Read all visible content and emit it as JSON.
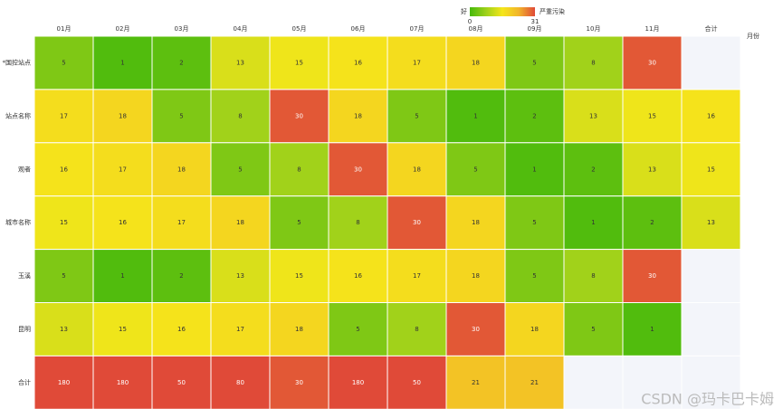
{
  "chart_data": {
    "type": "heatmap",
    "x_axis_name": "月份",
    "categories": [
      "01月",
      "02月",
      "03月",
      "04月",
      "05月",
      "06月",
      "07月",
      "08月",
      "09月",
      "10月",
      "11月",
      "合计"
    ],
    "y_categories": [
      "*国控站点",
      "站点名称",
      "观者",
      "城市名称",
      "玉溪",
      "昆明",
      "合计"
    ],
    "values": [
      [
        5,
        1,
        2,
        13,
        15,
        16,
        17,
        18,
        5,
        8,
        30,
        null
      ],
      [
        17,
        18,
        5,
        8,
        30,
        18,
        5,
        1,
        2,
        13,
        15,
        16
      ],
      [
        16,
        17,
        18,
        5,
        8,
        30,
        18,
        5,
        1,
        2,
        13,
        15
      ],
      [
        15,
        16,
        17,
        18,
        5,
        8,
        30,
        18,
        5,
        1,
        2,
        13
      ],
      [
        5,
        1,
        2,
        13,
        15,
        16,
        17,
        18,
        5,
        8,
        30,
        null
      ],
      [
        13,
        15,
        16,
        17,
        18,
        5,
        8,
        30,
        18,
        5,
        1,
        null
      ],
      [
        180,
        180,
        50,
        80,
        30,
        180,
        50,
        21,
        21,
        null,
        null,
        null
      ]
    ],
    "visual_map": {
      "min": 0,
      "max": 31,
      "low_label": "好",
      "high_label": "严重污染",
      "colors": [
        "#46b90b",
        "#9ed11a",
        "#f5e61a",
        "#f2b52a",
        "#e04a38"
      ]
    },
    "watermark": "CSDN @玛卡巴卡姆"
  }
}
